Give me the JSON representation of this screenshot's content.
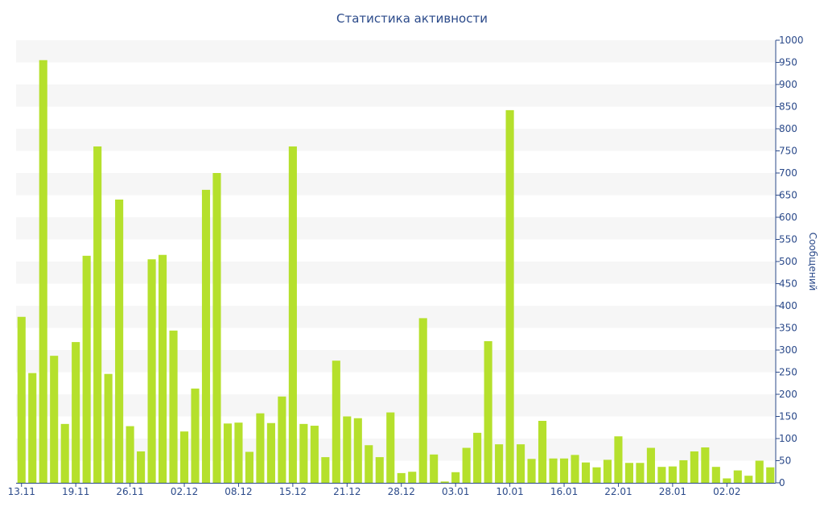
{
  "chart_data": {
    "type": "bar",
    "title": "Статистика активности",
    "ylabel": "Сообщений",
    "xlabel": "",
    "ylim": [
      0,
      1000
    ],
    "y_ticks": [
      0,
      50,
      100,
      150,
      200,
      250,
      300,
      350,
      400,
      450,
      500,
      550,
      600,
      650,
      700,
      750,
      800,
      850,
      900,
      950,
      1000
    ],
    "y_axis_side": "right",
    "x_tick_labels": [
      {
        "index": 0,
        "label": "13.11"
      },
      {
        "index": 5,
        "label": "19.11"
      },
      {
        "index": 10,
        "label": "26.11"
      },
      {
        "index": 15,
        "label": "02.12"
      },
      {
        "index": 20,
        "label": "08.12"
      },
      {
        "index": 25,
        "label": "15.12"
      },
      {
        "index": 30,
        "label": "21.12"
      },
      {
        "index": 35,
        "label": "28.12"
      },
      {
        "index": 40,
        "label": "03.01"
      },
      {
        "index": 45,
        "label": "10.01"
      },
      {
        "index": 50,
        "label": "16.01"
      },
      {
        "index": 55,
        "label": "22.01"
      },
      {
        "index": 60,
        "label": "28.01"
      },
      {
        "index": 65,
        "label": "02.02"
      }
    ],
    "values": [
      375,
      248,
      955,
      287,
      133,
      318,
      513,
      760,
      246,
      640,
      128,
      71,
      505,
      515,
      344,
      116,
      213,
      662,
      700,
      134,
      136,
      70,
      157,
      135,
      195,
      760,
      133,
      129,
      58,
      276,
      150,
      146,
      85,
      58,
      159,
      22,
      25,
      372,
      64,
      3,
      24,
      79,
      113,
      320,
      87,
      842,
      87,
      54,
      140,
      55,
      55,
      63,
      46,
      35,
      52,
      105,
      45,
      45,
      79,
      36,
      37,
      51,
      71,
      80,
      36,
      10,
      28,
      16,
      50,
      35
    ],
    "grid": "horizontal bands",
    "legend": "none",
    "colors": {
      "bar": "#b5e02c",
      "axis": "#2b4a8a",
      "band": "#f6f6f6"
    }
  }
}
